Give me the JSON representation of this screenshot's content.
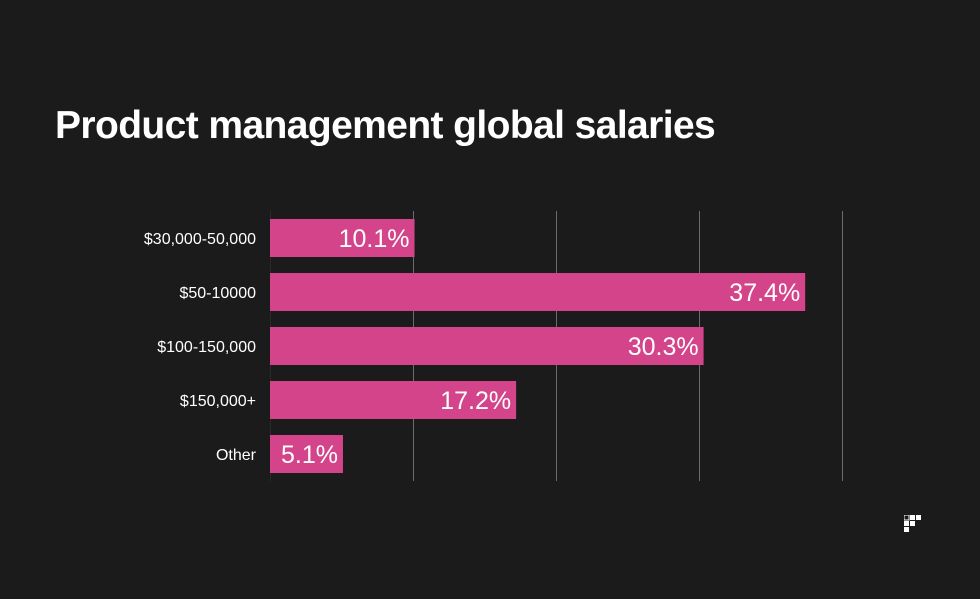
{
  "title": "Product management global salaries",
  "chart_data": {
    "type": "bar",
    "orientation": "horizontal",
    "title": "Product management global salaries",
    "categories": [
      "$30,000-50,000",
      "$50-10000",
      "$100-150,000",
      "$150,000+",
      "Other"
    ],
    "values": [
      10.1,
      37.4,
      30.3,
      17.2,
      5.1
    ],
    "value_labels": [
      "10.1%",
      "37.4%",
      "30.3%",
      "17.2%",
      "5.1%"
    ],
    "xlim": [
      0,
      40
    ],
    "grid": true,
    "legend": "none",
    "colors": {
      "background": "#1b1b1b",
      "bar": "#d4448a",
      "grid": "#6b6b6b",
      "text": "#ffffff"
    }
  },
  "logo": {
    "icon": "brand-logo-icon"
  }
}
